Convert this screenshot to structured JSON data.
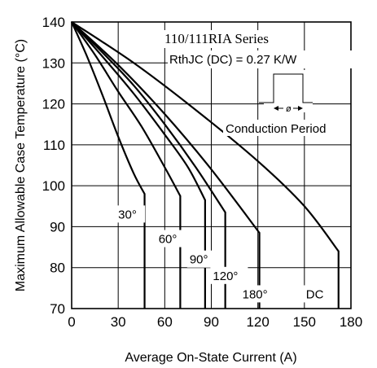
{
  "chart_data": {
    "type": "line",
    "title": "110/111RIA Series",
    "subtitle": "RthJC (DC) = 0.27 K/W",
    "xlabel": "Average On-State Current (A)",
    "ylabel": "Maximum Allowable Case Temperature (°C)",
    "xlim": [
      0,
      180
    ],
    "ylim": [
      70,
      140
    ],
    "xticks": [
      "0",
      "30",
      "60",
      "90",
      "120",
      "150",
      "180"
    ],
    "yticks": [
      "70",
      "80",
      "90",
      "100",
      "110",
      "120",
      "130",
      "140"
    ],
    "grid": true,
    "inset_label": "Conduction Period",
    "inset_symbol": "ø",
    "series": [
      {
        "name": "30°",
        "label_at": [
          30,
          92
        ],
        "x": [
          0,
          10,
          20,
          30,
          40,
          47,
          47
        ],
        "y": [
          140,
          131.5,
          122,
          112,
          103,
          98,
          70
        ]
      },
      {
        "name": "60°",
        "label_at": [
          56,
          86
        ],
        "x": [
          0,
          15,
          30,
          45,
          60,
          70,
          70
        ],
        "y": [
          140,
          132,
          123,
          114.5,
          104.5,
          97.5,
          70
        ]
      },
      {
        "name": "90°",
        "label_at": [
          76,
          81
        ],
        "x": [
          0,
          20,
          40,
          60,
          75,
          86,
          86
        ],
        "y": [
          140,
          131.5,
          122.5,
          112.5,
          104.5,
          96.5,
          70
        ]
      },
      {
        "name": "120°",
        "label_at": [
          91,
          77
        ],
        "x": [
          0,
          20,
          40,
          60,
          80,
          99,
          99
        ],
        "y": [
          140,
          132.5,
          124.5,
          115,
          104.5,
          93.5,
          70
        ]
      },
      {
        "name": "180°",
        "label_at": [
          110,
          72.5
        ],
        "x": [
          0,
          30,
          60,
          90,
          121,
          121
        ],
        "y": [
          140,
          129.5,
          117.5,
          104,
          88.5,
          70
        ]
      },
      {
        "name": "DC",
        "label_at": [
          151,
          72.5
        ],
        "x": [
          0,
          40,
          80,
          120,
          150,
          172,
          172
        ],
        "y": [
          140,
          130,
          118.5,
          106,
          95,
          84,
          70
        ]
      }
    ]
  }
}
